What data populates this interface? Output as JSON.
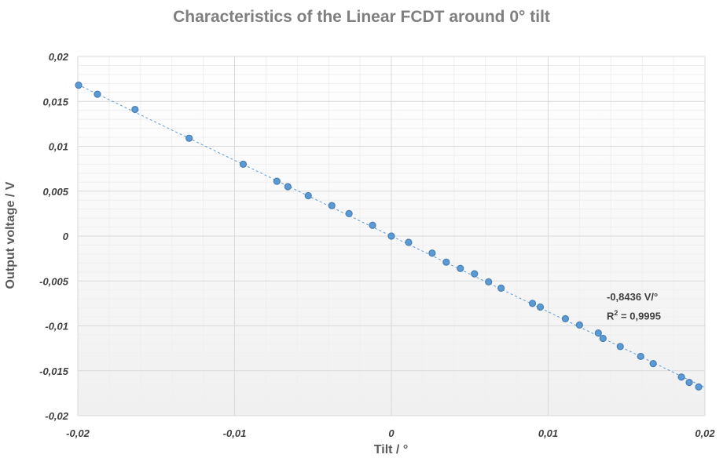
{
  "chart_data": {
    "type": "scatter",
    "title": "Characteristics of the Linear FCDT around 0° tilt",
    "xlabel": "Tilt / °",
    "ylabel": "Output voltage / V",
    "xlim": [
      -0.02,
      0.02
    ],
    "ylim": [
      -0.02,
      0.02
    ],
    "x_ticks": [
      "-0,02",
      "-0,01",
      "0",
      "0,01",
      "0,02"
    ],
    "y_ticks": [
      "0,02",
      "0,015",
      "0,01",
      "0,005",
      "0",
      "-0,005",
      "-0,01",
      "-0,015",
      "-0,02"
    ],
    "grid": true,
    "series": [
      {
        "points": [
          [
            -0.01995,
            0.0168
          ],
          [
            -0.01875,
            0.0158
          ],
          [
            -0.01635,
            0.0141
          ],
          [
            -0.0129,
            0.0109
          ],
          [
            -0.00945,
            0.008
          ],
          [
            -0.0073,
            0.0061
          ],
          [
            -0.0066,
            0.0055
          ],
          [
            -0.0053,
            0.0045
          ],
          [
            -0.0038,
            0.0034
          ],
          [
            -0.0027,
            0.0025
          ],
          [
            -0.0012,
            0.0012
          ],
          [
            0.0,
            0.0
          ],
          [
            0.0011,
            -0.0007
          ],
          [
            0.0026,
            -0.0019
          ],
          [
            0.0035,
            -0.0029
          ],
          [
            0.0044,
            -0.0036
          ],
          [
            0.0053,
            -0.0042
          ],
          [
            0.0062,
            -0.0051
          ],
          [
            0.007,
            -0.0058
          ],
          [
            0.009,
            -0.0075
          ],
          [
            0.0095,
            -0.0079
          ],
          [
            0.0111,
            -0.0092
          ],
          [
            0.012,
            -0.0099
          ],
          [
            0.0132,
            -0.0108
          ],
          [
            0.0135,
            -0.0114
          ],
          [
            0.0146,
            -0.0123
          ],
          [
            0.0159,
            -0.0134
          ],
          [
            0.0167,
            -0.0142
          ],
          [
            0.0185,
            -0.0157
          ],
          [
            0.019,
            -0.0163
          ],
          [
            0.0196,
            -0.0168
          ]
        ],
        "color": "#5b9bd5"
      }
    ],
    "trendline": {
      "type": "linear",
      "slope": -0.8436,
      "intercept": 0,
      "color": "#5b9bd5",
      "style": "dashed",
      "equation_label": "-0,8436  V/°",
      "r2_label_prefix": "R",
      "r2_label_suffix": " = 0,9995"
    }
  }
}
